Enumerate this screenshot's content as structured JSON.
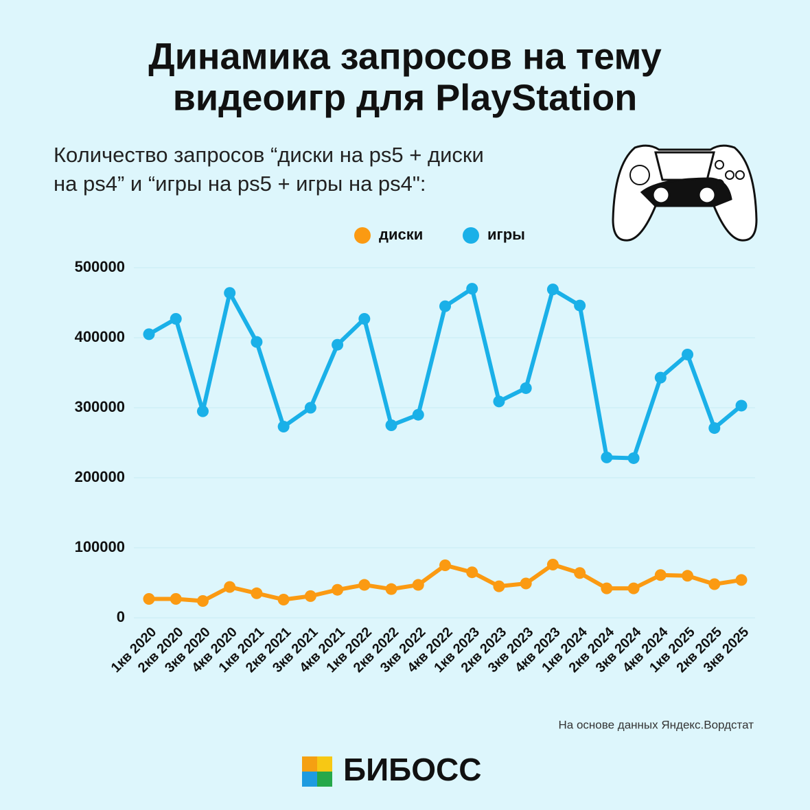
{
  "chart_data": {
    "type": "line",
    "title": [
      "Динамика запросов на тему",
      "видеоигр для PlayStation"
    ],
    "subtitle": [
      "Количество запросов “диски на ps5 + диски",
      "на ps4” и “игры на ps5 + игры на ps4\":"
    ],
    "categories": [
      "1кв 2020",
      "2кв 2020",
      "3кв 2020",
      "4кв 2020",
      "1кв 2021",
      "2кв 2021",
      "3кв 2021",
      "4кв 2021",
      "1кв 2022",
      "2кв 2022",
      "3кв 2022",
      "4кв 2022",
      "1кв 2023",
      "2кв 2023",
      "3кв 2023",
      "4кв 2023",
      "1кв 2024",
      "2кв 2024",
      "3кв 2024",
      "4кв 2024",
      "1кв 2025",
      "2кв 2025",
      "3кв 2025"
    ],
    "series": [
      {
        "name": "диски",
        "color": "#fb9a12",
        "values": [
          27000,
          27000,
          24000,
          44000,
          35000,
          26000,
          31000,
          40000,
          47000,
          41000,
          47000,
          75000,
          65000,
          45000,
          49000,
          76000,
          64000,
          42000,
          42000,
          61000,
          60000,
          48000,
          54000
        ]
      },
      {
        "name": "игры",
        "color": "#1ab0e8",
        "values": [
          405000,
          427000,
          295000,
          464000,
          394000,
          273000,
          300000,
          390000,
          427000,
          275000,
          290000,
          445000,
          470000,
          309000,
          328000,
          469000,
          446000,
          229000,
          228000,
          343000,
          376000,
          271000,
          303000
        ]
      }
    ],
    "ylim": [
      0,
      500000
    ],
    "yticks": [
      0,
      100000,
      200000,
      300000,
      400000,
      500000
    ],
    "grid": true,
    "legend": "top",
    "source": "На основе данных Яндекс.Вордстат",
    "brand": "БИБОСС"
  }
}
